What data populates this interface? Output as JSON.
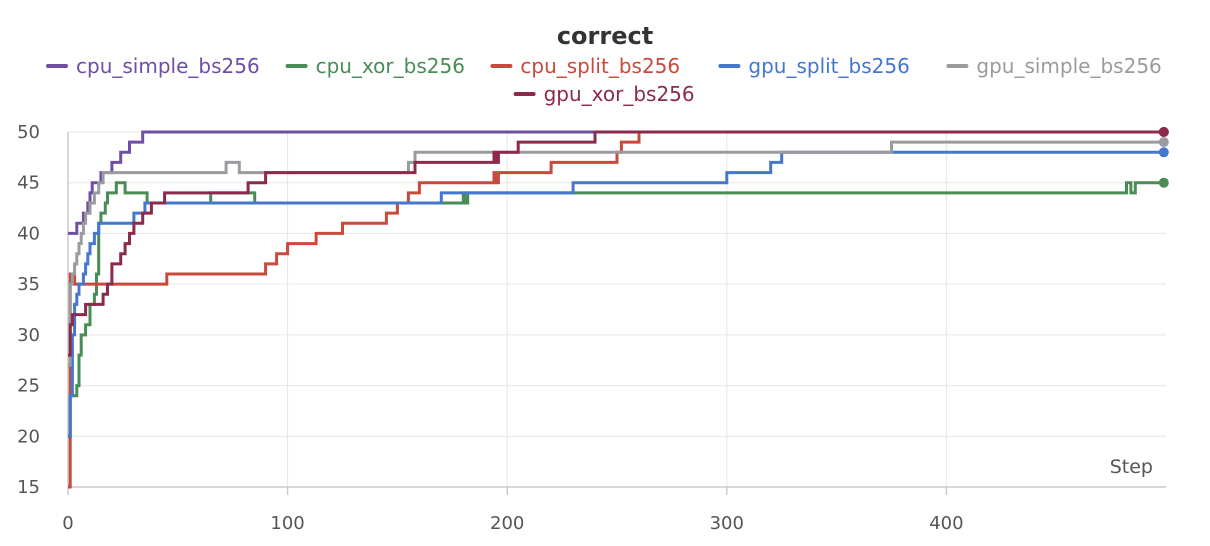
{
  "chart_data": {
    "type": "line",
    "title": "correct",
    "xlabel": "Step",
    "ylabel": "",
    "xlim": [
      0,
      500
    ],
    "ylim": [
      15,
      50
    ],
    "x_ticks": [
      0,
      100,
      200,
      300,
      400
    ],
    "y_ticks": [
      15,
      20,
      25,
      30,
      35,
      40,
      45,
      50
    ],
    "grid": true,
    "legend_position": "top",
    "series": [
      {
        "name": "cpu_simple_bs256",
        "color": "#6f4ea3",
        "x": [
          0,
          1,
          2,
          3,
          4,
          5,
          6,
          7,
          8,
          9,
          10,
          11,
          12,
          14,
          15,
          16,
          18,
          20,
          22,
          24,
          26,
          28,
          30,
          32,
          34,
          40,
          60,
          80,
          100,
          150,
          200,
          250,
          300,
          350,
          400,
          450,
          499
        ],
        "y": [
          40,
          40,
          40,
          40,
          41,
          41,
          41,
          42,
          42,
          43,
          44,
          45,
          45,
          45,
          46,
          46,
          46,
          47,
          47,
          48,
          48,
          49,
          49,
          49,
          50,
          50,
          50,
          50,
          50,
          50,
          50,
          50,
          50,
          50,
          50,
          50,
          50
        ]
      },
      {
        "name": "cpu_xor_bs256",
        "color": "#4a8c56",
        "x": [
          0,
          1,
          2,
          3,
          4,
          5,
          6,
          7,
          8,
          10,
          12,
          13,
          14,
          15,
          16,
          17,
          18,
          20,
          22,
          24,
          26,
          30,
          34,
          36,
          40,
          50,
          64,
          65,
          84,
          85,
          120,
          160,
          178,
          180,
          181,
          182,
          200,
          250,
          300,
          350,
          400,
          450,
          480,
          482,
          484,
          486,
          490,
          499
        ],
        "y": [
          20,
          24,
          24,
          24,
          25,
          28,
          30,
          30,
          31,
          33,
          34,
          36,
          41,
          42,
          42,
          43,
          44,
          44,
          45,
          45,
          44,
          44,
          44,
          43,
          43,
          43,
          43,
          44,
          44,
          43,
          43,
          43,
          43,
          44,
          43,
          44,
          44,
          44,
          44,
          44,
          44,
          44,
          44,
          45,
          44,
          45,
          45,
          45
        ]
      },
      {
        "name": "cpu_split_bs256",
        "color": "#c9493c",
        "x": [
          0,
          1,
          2,
          3,
          4,
          6,
          10,
          20,
          30,
          40,
          45,
          60,
          80,
          90,
          95,
          97,
          100,
          105,
          110,
          113,
          115,
          120,
          125,
          130,
          140,
          145,
          150,
          155,
          160,
          170,
          180,
          190,
          194,
          195,
          196,
          200,
          210,
          220,
          230,
          240,
          250,
          252,
          260,
          270,
          300,
          350,
          400,
          450,
          499
        ],
        "y": [
          15,
          36,
          36,
          35,
          35,
          35,
          35,
          35,
          35,
          35,
          36,
          36,
          36,
          37,
          38,
          38,
          39,
          39,
          39,
          40,
          40,
          40,
          41,
          41,
          41,
          42,
          43,
          44,
          45,
          45,
          45,
          45,
          46,
          45,
          46,
          46,
          46,
          47,
          47,
          47,
          48,
          49,
          50,
          50,
          50,
          50,
          50,
          50,
          50
        ]
      },
      {
        "name": "gpu_split_bs256",
        "color": "#4577cf",
        "x": [
          0,
          1,
          2,
          3,
          4,
          5,
          6,
          7,
          8,
          9,
          10,
          12,
          14,
          16,
          18,
          20,
          25,
          30,
          35,
          40,
          60,
          100,
          150,
          170,
          180,
          200,
          230,
          240,
          280,
          300,
          310,
          320,
          325,
          340,
          372,
          380,
          400,
          450,
          499
        ],
        "y": [
          20,
          24,
          30,
          33,
          34,
          35,
          35,
          36,
          37,
          38,
          39,
          40,
          41,
          41,
          41,
          41,
          41,
          42,
          43,
          43,
          43,
          43,
          43,
          44,
          44,
          44,
          45,
          45,
          45,
          46,
          46,
          47,
          48,
          48,
          48,
          48,
          48,
          48,
          48
        ]
      },
      {
        "name": "gpu_simple_bs256",
        "color": "#9a9b9e",
        "x": [
          0,
          1,
          2,
          3,
          4,
          5,
          6,
          7,
          8,
          10,
          12,
          14,
          16,
          18,
          20,
          30,
          40,
          50,
          60,
          70,
          72,
          75,
          78,
          80,
          100,
          150,
          155,
          158,
          160,
          180,
          200,
          250,
          300,
          350,
          372,
          375,
          400,
          450,
          499
        ],
        "y": [
          27,
          35,
          36,
          37,
          38,
          39,
          40,
          41,
          42,
          43,
          44,
          45,
          46,
          46,
          46,
          46,
          46,
          46,
          46,
          46,
          47,
          47,
          46,
          46,
          46,
          46,
          47,
          48,
          48,
          48,
          48,
          48,
          48,
          48,
          48,
          49,
          49,
          49,
          49
        ]
      },
      {
        "name": "gpu_xor_bs256",
        "color": "#8b2a4c",
        "x": [
          0,
          1,
          2,
          3,
          5,
          8,
          10,
          14,
          16,
          18,
          20,
          24,
          26,
          28,
          30,
          34,
          38,
          40,
          44,
          50,
          60,
          70,
          80,
          82,
          86,
          90,
          100,
          130,
          150,
          155,
          158,
          160,
          180,
          190,
          194,
          195,
          196,
          200,
          205,
          210,
          220,
          230,
          235,
          240,
          260,
          300,
          350,
          400,
          450,
          499
        ],
        "y": [
          28,
          31,
          32,
          32,
          32,
          33,
          33,
          33,
          34,
          35,
          37,
          38,
          39,
          40,
          41,
          42,
          43,
          43,
          44,
          44,
          44,
          44,
          44,
          45,
          45,
          46,
          46,
          46,
          46,
          46,
          47,
          47,
          47,
          47,
          48,
          47,
          48,
          48,
          49,
          49,
          49,
          49,
          49,
          50,
          50,
          50,
          50,
          50,
          50,
          50
        ]
      }
    ]
  }
}
